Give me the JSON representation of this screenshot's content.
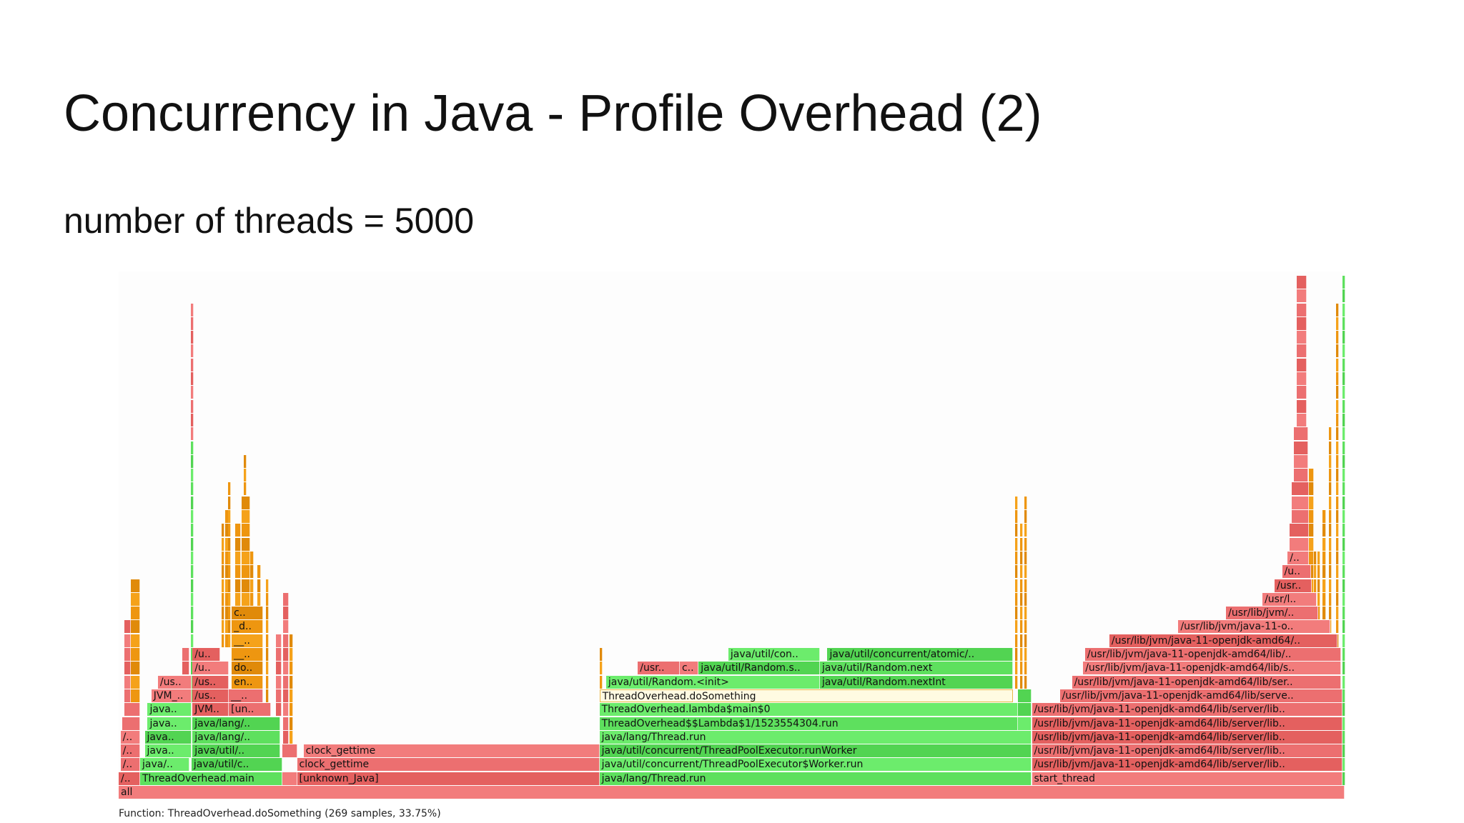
{
  "slide": {
    "title": "Concurrency in Java - Profile Overhead (2)",
    "subtitle": "number of threads = 5000"
  },
  "flamegraph": {
    "footer": "Function: ThreadOverhead.doSomething (269 samples, 33.75%)",
    "colors": {
      "r": "#ec6f70",
      "g": "#5ee05e",
      "o": "#ee9610",
      "y": "#fffbe2"
    },
    "frames_note_units": "level, start % of samples, width % of samples, label, color",
    "frames": [
      [
        0,
        0,
        100,
        "all",
        "r"
      ],
      [
        1,
        0,
        1.75,
        "/..",
        "r"
      ],
      [
        1,
        1.75,
        11.58,
        "ThreadOverhead.main",
        "g"
      ],
      [
        1,
        13.33,
        1.22,
        "",
        "r"
      ],
      [
        1,
        14.55,
        24.67,
        "[unknown_Java]",
        "r"
      ],
      [
        1,
        39.22,
        35.27,
        "java/lang/Thread.run",
        "g"
      ],
      [
        1,
        74.49,
        25.36,
        "start_thread",
        "r"
      ],
      [
        1,
        99.85,
        0.15,
        "",
        "g"
      ],
      [
        2,
        0.15,
        1.6,
        "/..",
        "r"
      ],
      [
        2,
        1.75,
        4.04,
        "java/..",
        "g"
      ],
      [
        2,
        5.94,
        7.39,
        "java/util/c..",
        "g"
      ],
      [
        2,
        14.55,
        24.67,
        "clock_gettime",
        "r"
      ],
      [
        2,
        39.22,
        35.27,
        "java/util/concurrent/ThreadPoolExecutor$Worker.run",
        "g"
      ],
      [
        2,
        74.49,
        25.36,
        "/usr/lib/jvm/java-11-openjdk-amd64/lib/server/lib..",
        "r"
      ],
      [
        3,
        0.15,
        1.6,
        "/..",
        "r"
      ],
      [
        3,
        2.13,
        3.81,
        "java..",
        "g"
      ],
      [
        3,
        6.02,
        7.16,
        "java/util/..",
        "g"
      ],
      [
        3,
        13.33,
        1.22,
        "",
        "r"
      ],
      [
        3,
        15.08,
        24.14,
        "clock_gettime",
        "r"
      ],
      [
        3,
        39.22,
        35.27,
        "java/util/concurrent/ThreadPoolExecutor.runWorker",
        "g"
      ],
      [
        3,
        74.49,
        25.36,
        "/usr/lib/jvm/java-11-openjdk-amd64/lib/server/lib..",
        "r"
      ],
      [
        4,
        0.15,
        1.6,
        "/..",
        "r"
      ],
      [
        4,
        2.13,
        3.81,
        "java..",
        "g"
      ],
      [
        4,
        6.02,
        7.16,
        "java/lang/..",
        "g"
      ],
      [
        4,
        39.22,
        35.27,
        "java/lang/Thread.run",
        "g"
      ],
      [
        4,
        74.49,
        25.36,
        "/usr/lib/jvm/java-11-openjdk-amd64/lib/server/lib..",
        "r"
      ],
      [
        5,
        0.3,
        1.45,
        "",
        "r"
      ],
      [
        5,
        2.36,
        3.58,
        "java..",
        "g"
      ],
      [
        5,
        6.02,
        7.16,
        "java/lang/..",
        "g"
      ],
      [
        5,
        39.22,
        34.12,
        "ThreadOverhead$$Lambda$1/1523554304.run",
        "g"
      ],
      [
        5,
        73.34,
        1.15,
        "",
        "g"
      ],
      [
        5,
        74.49,
        25.36,
        "/usr/lib/jvm/java-11-openjdk-amd64/lib/server/lib..",
        "r"
      ],
      [
        6,
        0.46,
        1.29,
        "",
        "r"
      ],
      [
        6,
        2.36,
        3.58,
        "java..",
        "g"
      ],
      [
        6,
        6.02,
        2.97,
        "JVM..",
        "r"
      ],
      [
        6,
        8.99,
        3.42,
        "[un..",
        "r"
      ],
      [
        6,
        39.22,
        34.12,
        "ThreadOverhead.lambda$main$0",
        "g"
      ],
      [
        6,
        73.34,
        1.15,
        "",
        "g"
      ],
      [
        6,
        74.49,
        25.36,
        "/usr/lib/jvm/java-11-openjdk-amd64/lib/server/lib..",
        "r"
      ],
      [
        7,
        2.67,
        3.27,
        "JVM_..",
        "r"
      ],
      [
        7,
        6.02,
        2.97,
        "/us..",
        "r"
      ],
      [
        7,
        8.99,
        2.81,
        "__..",
        "r"
      ],
      [
        7,
        39.22,
        33.74,
        "ThreadOverhead.doSomething",
        "y"
      ],
      [
        7,
        73.34,
        1.15,
        "",
        "g"
      ],
      [
        7,
        76.77,
        23.08,
        "/usr/lib/jvm/java-11-openjdk-amd64/lib/serve..",
        "r"
      ],
      [
        8,
        3.2,
        2.74,
        "/us..",
        "r"
      ],
      [
        8,
        6.02,
        2.97,
        "/us..",
        "r"
      ],
      [
        8,
        9.22,
        2.58,
        "en..",
        "o"
      ],
      [
        8,
        39.76,
        17.44,
        "java/util/Random.<init>",
        "g"
      ],
      [
        8,
        57.2,
        15.76,
        "java/util/Random.nextInt",
        "g"
      ],
      [
        8,
        77.76,
        21.94,
        "/usr/lib/jvm/java-11-openjdk-amd64/lib/ser..",
        "r"
      ],
      [
        9,
        6.02,
        2.97,
        "/u..",
        "r"
      ],
      [
        9,
        9.22,
        2.58,
        "do..",
        "o"
      ],
      [
        9,
        42.35,
        3.42,
        "/usr..",
        "r"
      ],
      [
        9,
        45.77,
        1.53,
        "c..",
        "r"
      ],
      [
        9,
        47.3,
        9.9,
        "java/util/Random.s..",
        "g"
      ],
      [
        9,
        57.2,
        15.76,
        "java/util/Random.next",
        "g"
      ],
      [
        9,
        78.67,
        21.03,
        "/usr/lib/jvm/java-11-openjdk-amd64/lib/s..",
        "r"
      ],
      [
        10,
        6.02,
        2.28,
        "/u..",
        "r"
      ],
      [
        10,
        9.22,
        2.58,
        "__..",
        "o"
      ],
      [
        10,
        49.73,
        7.47,
        "java/util/con..",
        "g"
      ],
      [
        10,
        57.81,
        15.15,
        "java/util/concurrent/atomic/..",
        "g"
      ],
      [
        10,
        78.83,
        20.87,
        "/usr/lib/jvm/java-11-openjdk-amd64/lib/..",
        "r"
      ],
      [
        11,
        9.22,
        2.58,
        "__..",
        "o"
      ],
      [
        11,
        80.81,
        18.58,
        "/usr/lib/jvm/java-11-openjdk-amd64/..",
        "r"
      ],
      [
        12,
        9.22,
        2.58,
        "_d..",
        "o"
      ],
      [
        12,
        86.44,
        12.42,
        "/usr/lib/jvm/java-11-o..",
        "r"
      ],
      [
        13,
        9.22,
        2.58,
        "c..",
        "o"
      ],
      [
        13,
        90.33,
        7.54,
        "/usr/lib/jvm/..",
        "r"
      ],
      [
        14,
        93.3,
        4.4,
        "/usr/l..",
        "r"
      ],
      [
        15,
        94.29,
        3.04,
        "/usr..",
        "r"
      ],
      [
        16,
        94.9,
        2.36,
        "/u..",
        "r"
      ],
      [
        17,
        95.35,
        1.75,
        "/..",
        "r"
      ]
    ],
    "towers_note_units": "start %, width %, from level, to level, color",
    "towers": [
      [
        0.99,
        0.76,
        7,
        15,
        "o"
      ],
      [
        0.46,
        0.53,
        7,
        12,
        "r"
      ],
      [
        5.9,
        0.12,
        7,
        25,
        "g"
      ],
      [
        5.9,
        0.12,
        26,
        35,
        "r"
      ],
      [
        5.18,
        0.6,
        9,
        10,
        "r"
      ],
      [
        4.42,
        0.76,
        8,
        8,
        "r"
      ],
      [
        3.6,
        0.15,
        8,
        8,
        "r"
      ],
      [
        8.4,
        0.2,
        11,
        19,
        "o"
      ],
      [
        8.7,
        0.3,
        11,
        20,
        "o"
      ],
      [
        8.95,
        0.2,
        11,
        22,
        "o"
      ],
      [
        9.5,
        0.5,
        14,
        19,
        "o"
      ],
      [
        10.0,
        0.7,
        14,
        21,
        "o"
      ],
      [
        10.2,
        0.2,
        22,
        24,
        "o"
      ],
      [
        10.7,
        0.3,
        11,
        17,
        "o"
      ],
      [
        11.3,
        0.3,
        11,
        16,
        "o"
      ],
      [
        12.0,
        0.25,
        6,
        15,
        "o"
      ],
      [
        12.8,
        0.5,
        6,
        11,
        "r"
      ],
      [
        13.4,
        0.5,
        4,
        14,
        "r"
      ],
      [
        13.95,
        0.3,
        4,
        11,
        "o"
      ],
      [
        39.22,
        0.15,
        8,
        10,
        "o"
      ],
      [
        73.1,
        0.15,
        8,
        21,
        "o"
      ],
      [
        73.5,
        0.15,
        8,
        19,
        "o"
      ],
      [
        73.85,
        0.15,
        8,
        21,
        "o"
      ],
      [
        95.5,
        1.6,
        18,
        19,
        "r"
      ],
      [
        95.7,
        1.4,
        20,
        22,
        "r"
      ],
      [
        95.85,
        1.2,
        23,
        26,
        "r"
      ],
      [
        96.1,
        0.8,
        27,
        37,
        "r"
      ],
      [
        97.1,
        0.4,
        14,
        23,
        "o"
      ],
      [
        97.5,
        0.2,
        13,
        17,
        "o"
      ],
      [
        97.8,
        0.2,
        13,
        17,
        "o"
      ],
      [
        98.2,
        0.3,
        13,
        20,
        "o"
      ],
      [
        98.7,
        0.2,
        12,
        26,
        "o"
      ],
      [
        99.3,
        0.15,
        10,
        35,
        "o"
      ],
      [
        99.85,
        0.12,
        1,
        37,
        "g"
      ]
    ]
  }
}
